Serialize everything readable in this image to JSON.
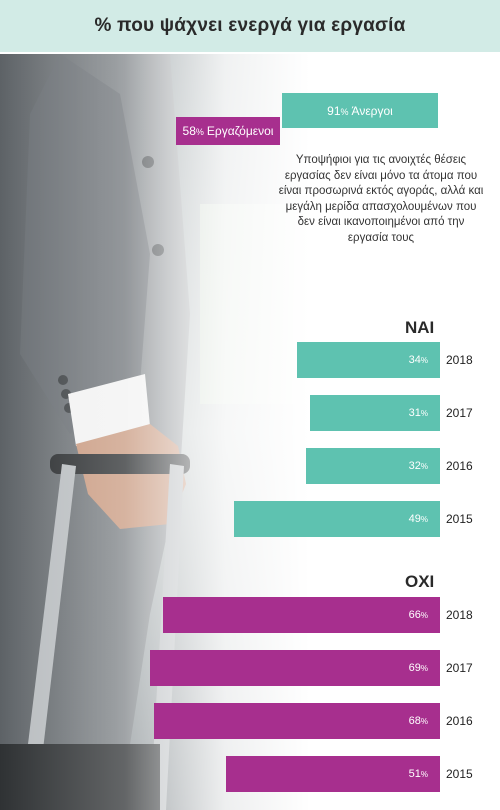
{
  "title": "% που ψάχνει ενεργά για εργασία",
  "colors": {
    "yes": "#5ec2b0",
    "no": "#a72f8e",
    "header_bg": "#d2ebe6"
  },
  "summary": {
    "unemployed": {
      "value": "91",
      "unit": "%",
      "label": "Άνεργοι"
    },
    "employed": {
      "value": "58",
      "unit": "%",
      "label": "Εργαζόμενοι"
    }
  },
  "note": "Υποψήφιοι για τις ανοιχτές θέσεις εργασίας δεν είναι μόνο τα άτομα που είναι προσωρινά εκτός αγοράς, αλλά και μεγάλη μερίδα απασχολουμένων που δεν είναι ικανοποιημένοι από την εργασία τους",
  "chart_data": [
    {
      "type": "bar",
      "title": "ΝΑΙ",
      "categories": [
        "2018",
        "2017",
        "2016",
        "2015"
      ],
      "values": [
        34,
        31,
        32,
        49
      ],
      "unit": "%"
    },
    {
      "type": "bar",
      "title": "ΟΧΙ",
      "categories": [
        "2018",
        "2017",
        "2016",
        "2015"
      ],
      "values": [
        66,
        69,
        68,
        51
      ],
      "unit": "%"
    }
  ]
}
